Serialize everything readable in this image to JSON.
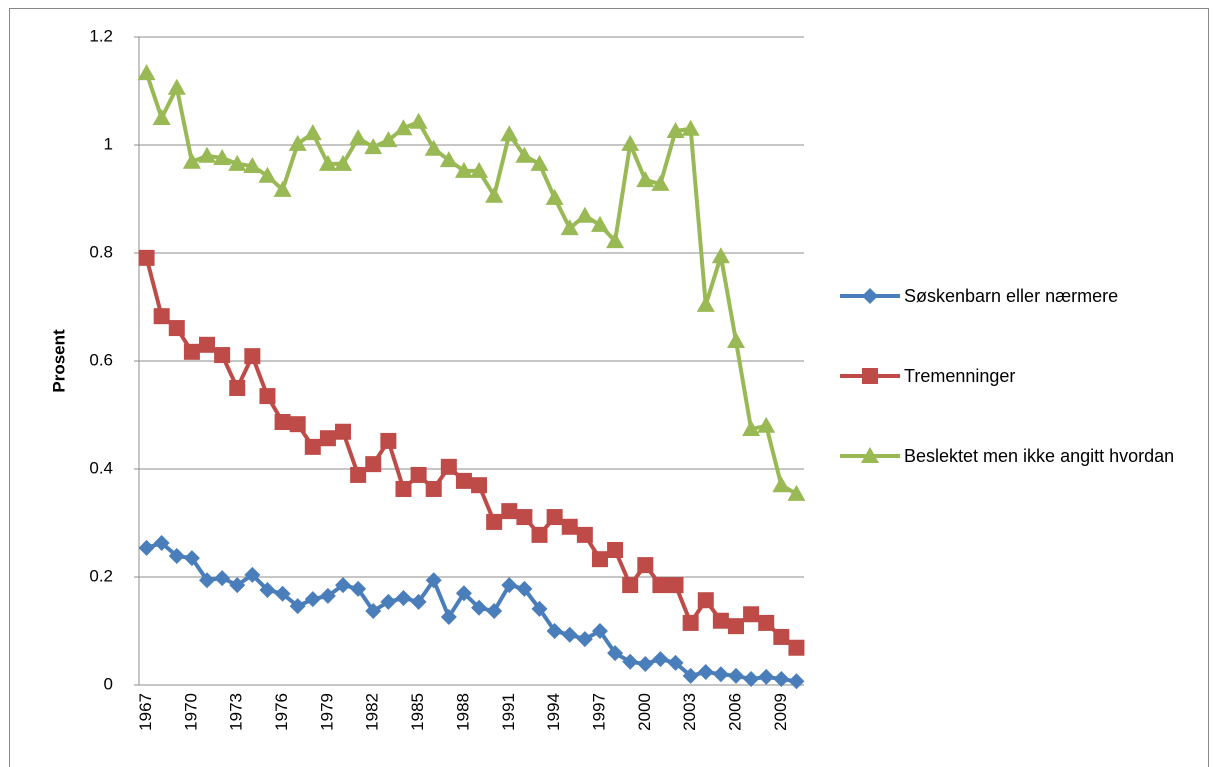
{
  "chart_data": {
    "type": "line",
    "y_label": "Prosent",
    "categories": [
      "1967",
      null,
      null,
      "1970",
      null,
      null,
      "1973",
      null,
      null,
      "1976",
      null,
      null,
      "1979",
      null,
      null,
      "1982",
      null,
      null,
      "1985",
      null,
      null,
      "1988",
      null,
      null,
      "1991",
      null,
      null,
      "1994",
      null,
      null,
      "1997",
      null,
      null,
      "2000",
      null,
      null,
      "2003",
      null,
      null,
      "2006",
      null,
      null,
      "2009",
      null
    ],
    "ylim": [
      0,
      1.2
    ],
    "yticks": [
      0,
      0.2,
      0.4,
      0.6,
      0.8,
      1,
      1.2
    ],
    "grid": true,
    "legend": "right",
    "series": [
      {
        "name": "Søskenbarn eller nærmere",
        "color": "#4a7ebb",
        "marker": "diamond",
        "values": [
          0.254,
          0.263,
          0.239,
          0.235,
          0.194,
          0.198,
          0.185,
          0.204,
          0.176,
          0.169,
          0.146,
          0.159,
          0.165,
          0.185,
          0.178,
          0.137,
          0.154,
          0.161,
          0.154,
          0.194,
          0.126,
          0.17,
          0.143,
          0.137,
          0.185,
          0.178,
          0.141,
          0.1,
          0.093,
          0.085,
          0.1,
          0.059,
          0.043,
          0.039,
          0.048,
          0.041,
          0.017,
          0.024,
          0.02,
          0.017,
          0.011,
          0.015,
          0.011,
          0.007
        ]
      },
      {
        "name": "Tremenninger",
        "color": "#be4b48",
        "marker": "square",
        "values": [
          0.791,
          0.683,
          0.661,
          0.617,
          0.63,
          0.611,
          0.55,
          0.609,
          0.535,
          0.487,
          0.483,
          0.441,
          0.457,
          0.469,
          0.389,
          0.409,
          0.452,
          0.363,
          0.389,
          0.363,
          0.404,
          0.378,
          0.37,
          0.302,
          0.322,
          0.311,
          0.278,
          0.311,
          0.293,
          0.278,
          0.233,
          0.25,
          0.185,
          0.222,
          0.185,
          0.185,
          0.115,
          0.157,
          0.119,
          0.109,
          0.131,
          0.115,
          0.089,
          0.069
        ]
      },
      {
        "name": "Beslektet men ikke angitt hvordan",
        "color": "#98b954",
        "marker": "triangle",
        "values": [
          1.133,
          1.05,
          1.106,
          0.969,
          0.98,
          0.976,
          0.965,
          0.961,
          0.943,
          0.917,
          1.002,
          1.022,
          0.965,
          0.965,
          1.013,
          0.996,
          1.009,
          1.031,
          1.043,
          0.993,
          0.972,
          0.952,
          0.952,
          0.906,
          1.02,
          0.98,
          0.965,
          0.902,
          0.846,
          0.869,
          0.852,
          0.822,
          1.002,
          0.935,
          0.928,
          1.026,
          1.03,
          0.704,
          0.794,
          0.637,
          0.474,
          0.48,
          0.37,
          0.354
        ]
      }
    ]
  }
}
